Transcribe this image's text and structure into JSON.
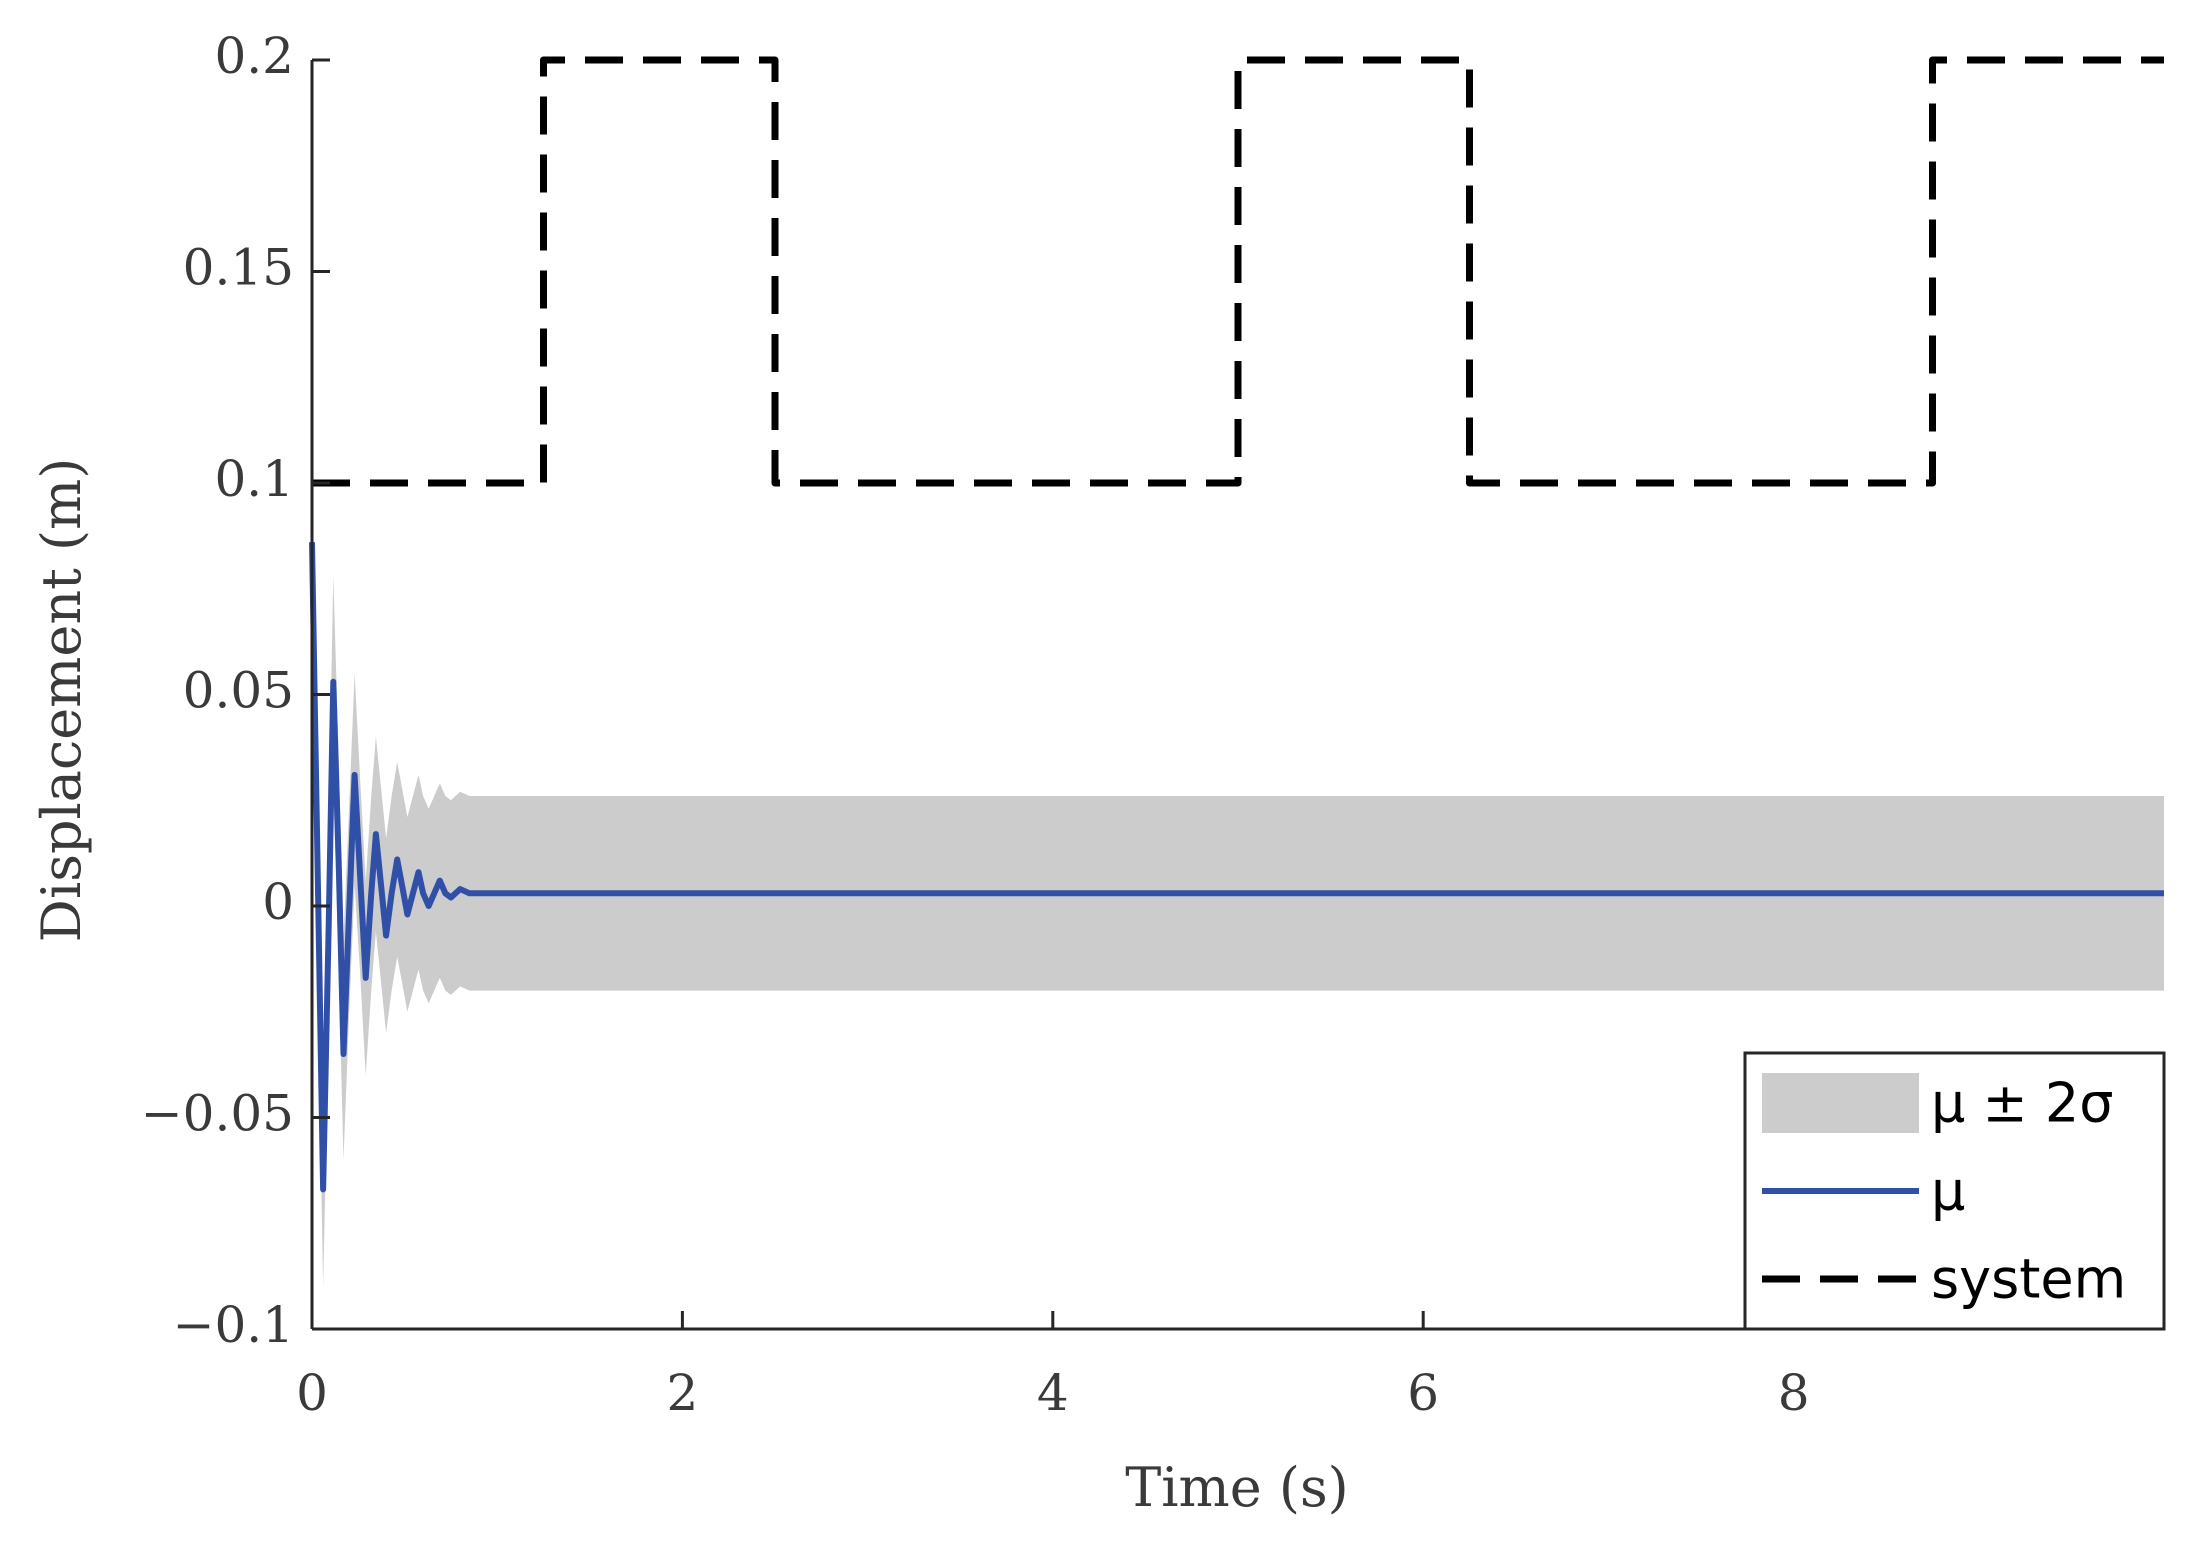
{
  "chart_data": {
    "type": "line",
    "x_label": "Time (s)",
    "y_label": "Displacement (m)",
    "xlim": [
      0,
      10
    ],
    "ylim": [
      -0.1,
      0.2
    ],
    "xticks": [
      0,
      2,
      4,
      6,
      8
    ],
    "yticks": [
      {
        "value": -0.1,
        "label": "−0.1"
      },
      {
        "value": -0.05,
        "label": "−0.05"
      },
      0,
      0.05,
      0.1,
      0.15,
      0.2
    ],
    "grid": false,
    "legend": "lower right",
    "series": [
      {
        "name": "μ ± 2σ",
        "kind": "band",
        "color": "#cccccc",
        "x": [
          0,
          0.03,
          0.06,
          0.09,
          0.115,
          0.145,
          0.17,
          0.2,
          0.23,
          0.26,
          0.29,
          0.32,
          0.345,
          0.375,
          0.4,
          0.43,
          0.46,
          0.49,
          0.515,
          0.545,
          0.575,
          0.6,
          0.63,
          0.66,
          0.69,
          0.72,
          0.75,
          0.8,
          0.85,
          0.9,
          1.0,
          1.2,
          1.5,
          10
        ],
        "upper": [
          0.105,
          0.035,
          -0.04,
          0.02,
          0.078,
          0.034,
          -0.008,
          0.023,
          0.055,
          0.03,
          0.006,
          0.026,
          0.04,
          0.027,
          0.016,
          0.026,
          0.034,
          0.027,
          0.021,
          0.026,
          0.031,
          0.026,
          0.023,
          0.026,
          0.029,
          0.026,
          0.025,
          0.027,
          0.026,
          0.026,
          0.026,
          0.026,
          0.026,
          0.026
        ],
        "lower": [
          0.06,
          -0.015,
          -0.09,
          -0.03,
          0.028,
          -0.016,
          -0.06,
          -0.026,
          0.005,
          -0.016,
          -0.04,
          -0.02,
          -0.006,
          -0.019,
          -0.03,
          -0.02,
          -0.012,
          -0.019,
          -0.025,
          -0.02,
          -0.015,
          -0.02,
          -0.023,
          -0.02,
          -0.017,
          -0.02,
          -0.021,
          -0.019,
          -0.02,
          -0.02,
          -0.02,
          -0.02,
          -0.02,
          -0.02
        ]
      },
      {
        "name": "μ",
        "kind": "line",
        "color": "#3050a8",
        "x": [
          0,
          0.03,
          0.06,
          0.09,
          0.115,
          0.145,
          0.17,
          0.2,
          0.23,
          0.26,
          0.29,
          0.32,
          0.345,
          0.375,
          0.4,
          0.43,
          0.46,
          0.49,
          0.515,
          0.545,
          0.575,
          0.6,
          0.63,
          0.66,
          0.69,
          0.72,
          0.75,
          0.8,
          0.85,
          0.9,
          1.0,
          1.2,
          1.5,
          10
        ],
        "values": [
          0.086,
          0.01,
          -0.067,
          -0.005,
          0.053,
          0.009,
          -0.035,
          -0.002,
          0.031,
          0.007,
          -0.017,
          0.003,
          0.017,
          0.004,
          -0.007,
          0.003,
          0.011,
          0.004,
          -0.002,
          0.003,
          0.008,
          0.003,
          0.0,
          0.003,
          0.006,
          0.003,
          0.002,
          0.004,
          0.003,
          0.003,
          0.003,
          0.003,
          0.003,
          0.003
        ]
      },
      {
        "name": "system",
        "kind": "dashed",
        "color": "#000000",
        "x": [
          0,
          1.25,
          1.25,
          2.5,
          2.5,
          5,
          5,
          6.25,
          6.25,
          8.75,
          8.75,
          10
        ],
        "values": [
          0.1,
          0.1,
          0.2,
          0.2,
          0.1,
          0.1,
          0.2,
          0.2,
          0.1,
          0.1,
          0.2,
          0.2
        ]
      }
    ]
  }
}
